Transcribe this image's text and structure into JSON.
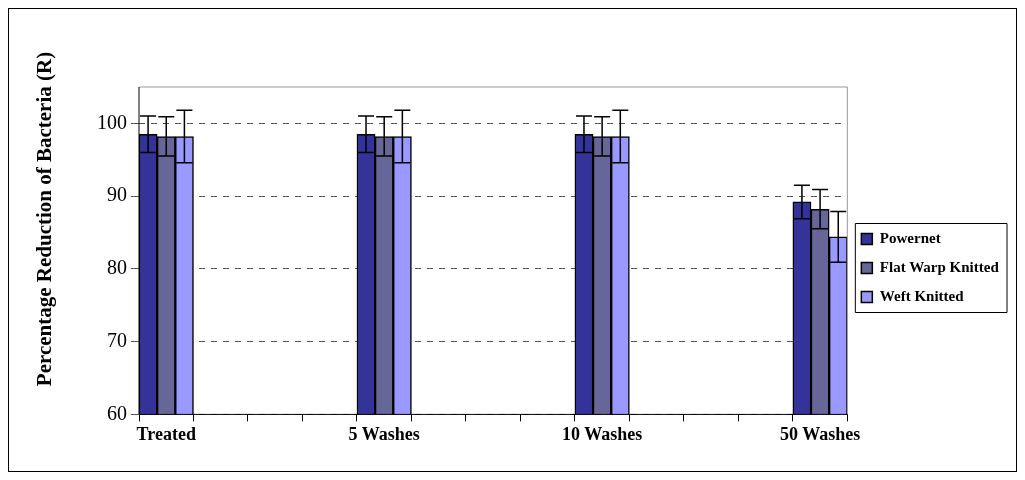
{
  "chart_data": {
    "type": "bar",
    "ylabel": "Percentage Reduction of Bacteria (R)",
    "categories": [
      "Treated",
      null,
      null,
      null,
      "5 Washes",
      null,
      null,
      null,
      "10 Washes",
      null,
      null,
      null,
      "50 Washes"
    ],
    "series": [
      {
        "name": "Powernet",
        "color": "#333399",
        "values": [
          98.5,
          null,
          null,
          null,
          98.5,
          null,
          null,
          null,
          98.5,
          null,
          null,
          null,
          89.2
        ],
        "errors": [
          2.5,
          null,
          null,
          null,
          2.5,
          null,
          null,
          null,
          2.5,
          null,
          null,
          null,
          2.3
        ]
      },
      {
        "name": "Flat Warp Knitted",
        "color": "#666699",
        "values": [
          98.2,
          null,
          null,
          null,
          98.2,
          null,
          null,
          null,
          98.2,
          null,
          null,
          null,
          88.2
        ],
        "errors": [
          2.7,
          null,
          null,
          null,
          2.7,
          null,
          null,
          null,
          2.7,
          null,
          null,
          null,
          2.7
        ]
      },
      {
        "name": "Weft Knitted",
        "color": "#9999ff",
        "values": [
          98.2,
          null,
          null,
          null,
          98.2,
          null,
          null,
          null,
          98.2,
          null,
          null,
          null,
          84.4
        ],
        "errors": [
          3.6,
          null,
          null,
          null,
          3.6,
          null,
          null,
          null,
          3.6,
          null,
          null,
          null,
          3.5
        ]
      }
    ],
    "ylim": [
      60,
      105
    ],
    "yticks": [
      60,
      70,
      80,
      90,
      100
    ],
    "grid": "y",
    "legend": "right"
  }
}
